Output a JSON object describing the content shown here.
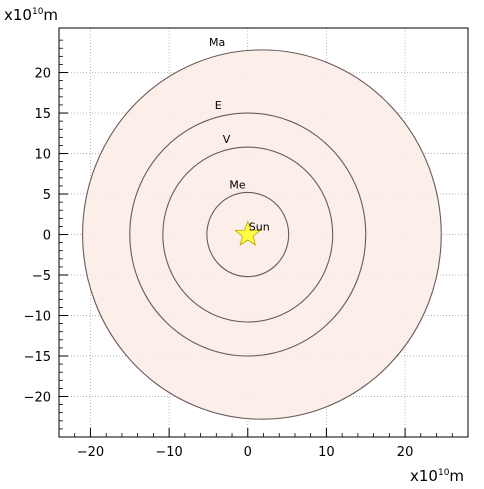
{
  "chart_data": {
    "type": "scatter",
    "title": "",
    "xlabel_multiplier": "x10",
    "xlabel_exponent": "10",
    "xlabel_unit": "m",
    "ylabel_multiplier": "x10",
    "ylabel_exponent": "10",
    "ylabel_unit": "m",
    "xlim": [
      -24,
      28
    ],
    "ylim": [
      -25,
      25.5
    ],
    "grid": true,
    "x_ticks": [
      -20,
      -10,
      0,
      10,
      20
    ],
    "y_ticks": [
      -20,
      -15,
      -10,
      -5,
      0,
      5,
      10,
      15,
      20
    ],
    "fill_color": "#fcece6",
    "orbit_color": "#6a5a5a",
    "sun_color": "#ffff44",
    "sun": {
      "label": "Sun",
      "x": 0,
      "y": 0
    },
    "orbits": [
      {
        "label": "Me",
        "cx": 0,
        "cy": 0,
        "r": 5.2
      },
      {
        "label": "V",
        "cx": 0,
        "cy": 0,
        "r": 10.8
      },
      {
        "label": "E",
        "cx": 0,
        "cy": 0,
        "r": 15.0
      },
      {
        "label": "Ma",
        "cx": 1.8,
        "cy": 0,
        "r": 22.8
      }
    ]
  }
}
